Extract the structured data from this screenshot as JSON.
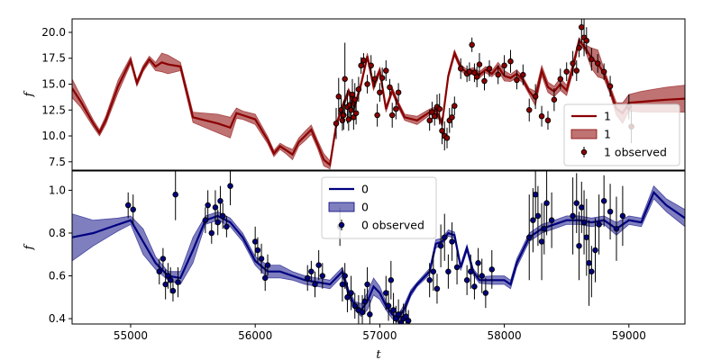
{
  "chart_data": [
    {
      "type": "line",
      "panel": "top",
      "ylabel": "f",
      "xlim": [
        54530,
        59450
      ],
      "ylim": [
        6.7,
        21.3
      ],
      "yticks": [
        "7.5",
        "10.0",
        "12.5",
        "15.0",
        "17.5",
        "20.0"
      ],
      "ytick_values": [
        7.5,
        10.0,
        12.5,
        15.0,
        17.5,
        20.0
      ],
      "color": "#8b0000",
      "legend_position": "lower-right",
      "legend": [
        {
          "kind": "line",
          "label": "1"
        },
        {
          "kind": "band",
          "label": "1"
        },
        {
          "kind": "points",
          "label": "1 observed"
        }
      ],
      "model": {
        "x": [
          54530,
          54600,
          54700,
          54750,
          54800,
          54900,
          55000,
          55050,
          55100,
          55150,
          55200,
          55250,
          55300,
          55400,
          55500,
          55700,
          55800,
          55850,
          55900,
          56000,
          56100,
          56150,
          56200,
          56250,
          56300,
          56350,
          56400,
          56450,
          56500,
          56550,
          56600,
          56650,
          56700,
          56750,
          56800,
          56850,
          56900,
          56950,
          57000,
          57050,
          57100,
          57150,
          57200,
          57300,
          57400,
          57450,
          57500,
          57550,
          57600,
          57650,
          57700,
          57750,
          57800,
          57850,
          57900,
          57950,
          58000,
          58050,
          58100,
          58150,
          58200,
          58250,
          58300,
          58350,
          58400,
          58450,
          58500,
          58550,
          58600,
          58650,
          58700,
          58750,
          58800,
          58850,
          58900,
          58950,
          59000,
          59100,
          59200,
          59300,
          59450
        ],
        "y": [
          14.6,
          13.3,
          11.2,
          10.3,
          11.5,
          14.8,
          17.3,
          15.1,
          16.5,
          17.4,
          16.7,
          17.1,
          16.9,
          16.7,
          11.8,
          11.2,
          10.8,
          12.2,
          12.0,
          11.6,
          9.6,
          8.3,
          9.0,
          8.6,
          8.2,
          9.4,
          10.0,
          10.6,
          9.2,
          7.7,
          7.2,
          11.0,
          12.8,
          14.3,
          12.9,
          15.0,
          17.7,
          14.8,
          16.3,
          12.6,
          14.4,
          13.0,
          11.8,
          11.5,
          12.3,
          12.5,
          11.2,
          15.8,
          18.0,
          16.6,
          16.1,
          16.3,
          15.9,
          16.4,
          16.0,
          16.7,
          15.8,
          15.6,
          16.0,
          15.4,
          14.3,
          13.6,
          16.3,
          14.7,
          14.3,
          15.0,
          14.4,
          16.6,
          19.2,
          18.5,
          17.5,
          17.0,
          16.0,
          14.4,
          12.6,
          12.2,
          13.2,
          13.3,
          13.4,
          13.5,
          13.6
        ],
        "sigma": [
          0.9,
          0.55,
          0.35,
          0.3,
          0.4,
          0.6,
          0.35,
          0.3,
          0.3,
          0.3,
          0.4,
          0.9,
          0.9,
          0.4,
          0.5,
          0.9,
          1.0,
          0.5,
          0.4,
          0.5,
          0.35,
          0.3,
          0.3,
          0.35,
          0.5,
          0.4,
          0.45,
          0.45,
          0.4,
          0.6,
          0.4,
          0.3,
          0.3,
          0.3,
          0.3,
          0.3,
          0.3,
          0.4,
          0.3,
          0.3,
          0.3,
          0.3,
          0.3,
          0.4,
          0.3,
          0.3,
          0.3,
          0.3,
          0.3,
          0.3,
          0.3,
          0.3,
          0.3,
          0.3,
          0.3,
          0.4,
          0.5,
          0.35,
          0.4,
          0.3,
          0.3,
          0.7,
          0.5,
          0.5,
          0.5,
          0.6,
          0.5,
          0.5,
          0.3,
          0.3,
          1.0,
          1.3,
          0.5,
          0.4,
          0.6,
          1.0,
          0.8,
          1.0,
          1.1,
          1.2,
          1.3
        ]
      },
      "observed": {
        "x": [
          56650,
          56670,
          56690,
          56700,
          56710,
          56720,
          56740,
          56750,
          56760,
          56770,
          56780,
          56790,
          56800,
          56810,
          56830,
          56850,
          56870,
          56900,
          56930,
          56960,
          56980,
          57000,
          57020,
          57050,
          57080,
          57100,
          57130,
          57150,
          57400,
          57420,
          57440,
          57460,
          57480,
          57500,
          57520,
          57540,
          57560,
          57580,
          57600,
          57650,
          57700,
          57720,
          57740,
          57760,
          57780,
          57800,
          57840,
          57880,
          57950,
          58000,
          58050,
          58100,
          58150,
          58200,
          58250,
          58300,
          58350,
          58400,
          58450,
          58500,
          58550,
          58580,
          58600,
          58620,
          58640,
          58660,
          58700,
          58750,
          58800,
          58850,
          59000,
          59020
        ],
        "y": [
          11.2,
          13.8,
          12.5,
          11.5,
          12.0,
          15.5,
          12.8,
          11.6,
          13.0,
          12.5,
          14.0,
          11.8,
          13.5,
          12.2,
          14.5,
          16.8,
          17.3,
          15.0,
          16.8,
          15.5,
          12.0,
          14.2,
          15.6,
          16.3,
          14.7,
          12.0,
          12.6,
          14.2,
          11.5,
          12.3,
          11.9,
          12.8,
          12.6,
          10.5,
          10.0,
          9.8,
          11.5,
          11.8,
          12.9,
          16.5,
          16.0,
          16.2,
          18.8,
          16.1,
          15.7,
          16.9,
          15.3,
          16.5,
          15.9,
          16.8,
          17.2,
          15.4,
          15.9,
          12.5,
          13.8,
          11.9,
          11.5,
          13.5,
          15.5,
          16.2,
          17.0,
          16.3,
          18.5,
          20.5,
          19.5,
          19.2,
          17.4,
          17.0,
          16.2,
          14.8,
          12.8,
          10.9
        ],
        "err": [
          1.5,
          1.8,
          1.2,
          1.0,
          1.4,
          3.5,
          1.6,
          1.1,
          1.3,
          1.0,
          1.5,
          1.2,
          1.6,
          1.1,
          1.2,
          0.8,
          0.7,
          0.9,
          1.0,
          0.8,
          1.1,
          0.9,
          1.0,
          1.0,
          0.8,
          1.2,
          1.0,
          0.9,
          1.0,
          1.0,
          0.9,
          1.2,
          1.5,
          1.3,
          1.4,
          1.0,
          1.2,
          1.0,
          0.9,
          1.0,
          0.8,
          0.9,
          0.7,
          0.9,
          1.0,
          1.1,
          0.9,
          0.8,
          0.9,
          1.0,
          1.1,
          0.9,
          1.0,
          1.1,
          1.2,
          1.0,
          0.9,
          1.1,
          1.0,
          0.9,
          1.2,
          1.0,
          0.9,
          1.5,
          1.8,
          1.3,
          1.1,
          0.9,
          0.8,
          1.0,
          1.2,
          1.6
        ]
      }
    },
    {
      "type": "line",
      "panel": "bottom",
      "xlabel": "t",
      "ylabel": "f",
      "xlim": [
        54530,
        59450
      ],
      "ylim": [
        0.375,
        1.09
      ],
      "yticks": [
        "0.4",
        "0.6",
        "0.8",
        "1.0"
      ],
      "ytick_values": [
        0.4,
        0.6,
        0.8,
        1.0
      ],
      "xticks": [
        "55000",
        "56000",
        "57000",
        "58000",
        "59000"
      ],
      "xtick_values": [
        55000,
        56000,
        57000,
        58000,
        59000
      ],
      "color": "#000080",
      "legend_position": "upper-center",
      "legend": [
        {
          "kind": "line",
          "label": "0"
        },
        {
          "kind": "band",
          "label": "0"
        },
        {
          "kind": "points",
          "label": "0 observed"
        }
      ],
      "model": {
        "x": [
          54530,
          54700,
          54900,
          55000,
          55100,
          55200,
          55300,
          55400,
          55500,
          55600,
          55700,
          55800,
          55900,
          56000,
          56100,
          56200,
          56300,
          56400,
          56500,
          56600,
          56700,
          56750,
          56800,
          56850,
          56900,
          56950,
          57000,
          57050,
          57100,
          57150,
          57200,
          57250,
          57300,
          57400,
          57450,
          57500,
          57550,
          57600,
          57650,
          57700,
          57750,
          57800,
          57900,
          58000,
          58050,
          58100,
          58200,
          58300,
          58400,
          58500,
          58600,
          58700,
          58800,
          58900,
          59000,
          59100,
          59200,
          59300,
          59450
        ],
        "y": [
          0.78,
          0.8,
          0.84,
          0.86,
          0.76,
          0.66,
          0.6,
          0.59,
          0.72,
          0.86,
          0.88,
          0.85,
          0.78,
          0.67,
          0.62,
          0.62,
          0.6,
          0.58,
          0.57,
          0.56,
          0.62,
          0.52,
          0.46,
          0.44,
          0.48,
          0.55,
          0.52,
          0.46,
          0.42,
          0.4,
          0.45,
          0.52,
          0.56,
          0.62,
          0.75,
          0.76,
          0.8,
          0.79,
          0.64,
          0.73,
          0.62,
          0.58,
          0.58,
          0.58,
          0.56,
          0.66,
          0.78,
          0.82,
          0.84,
          0.86,
          0.86,
          0.85,
          0.86,
          0.82,
          0.86,
          0.85,
          0.99,
          0.93,
          0.87
        ],
        "sigma": [
          0.11,
          0.06,
          0.03,
          0.02,
          0.06,
          0.03,
          0.02,
          0.03,
          0.06,
          0.02,
          0.02,
          0.02,
          0.02,
          0.02,
          0.03,
          0.03,
          0.02,
          0.02,
          0.02,
          0.02,
          0.02,
          0.02,
          0.02,
          0.03,
          0.04,
          0.04,
          0.03,
          0.02,
          0.02,
          0.02,
          0.02,
          0.015,
          0.01,
          0.015,
          0.02,
          0.015,
          0.015,
          0.015,
          0.015,
          0.015,
          0.015,
          0.015,
          0.02,
          0.02,
          0.02,
          0.02,
          0.02,
          0.02,
          0.02,
          0.02,
          0.02,
          0.02,
          0.02,
          0.03,
          0.02,
          0.02,
          0.03,
          0.03,
          0.04
        ]
      },
      "observed": {
        "x": [
          54980,
          55020,
          55230,
          55260,
          55280,
          55300,
          55320,
          55340,
          55360,
          55380,
          55600,
          55620,
          55650,
          55680,
          55700,
          55720,
          55740,
          55770,
          55800,
          56000,
          56020,
          56050,
          56080,
          56100,
          56420,
          56450,
          56480,
          56510,
          56540,
          56680,
          56700,
          56720,
          56740,
          56770,
          56800,
          56830,
          56860,
          56880,
          56900,
          56920,
          57050,
          57070,
          57090,
          57110,
          57130,
          57150,
          57170,
          57190,
          57210,
          57230,
          57400,
          57430,
          57460,
          57490,
          57520,
          57550,
          57580,
          57620,
          57700,
          57730,
          57760,
          57790,
          57820,
          57850,
          57900,
          58200,
          58230,
          58250,
          58270,
          58300,
          58320,
          58340,
          58380,
          58550,
          58580,
          58600,
          58620,
          58640,
          58660,
          58680,
          58700,
          58730,
          58760,
          58800,
          58850,
          58900,
          58950
        ],
        "y": [
          0.93,
          0.91,
          0.62,
          0.68,
          0.56,
          0.6,
          0.58,
          0.53,
          0.98,
          0.57,
          0.86,
          0.93,
          0.8,
          0.92,
          0.85,
          0.95,
          0.88,
          0.83,
          1.02,
          0.76,
          0.72,
          0.68,
          0.59,
          0.65,
          0.59,
          0.62,
          0.56,
          0.65,
          0.6,
          0.83,
          0.56,
          0.6,
          0.5,
          0.52,
          0.46,
          0.44,
          0.43,
          0.48,
          0.56,
          0.42,
          0.52,
          0.46,
          0.58,
          0.44,
          0.4,
          0.42,
          0.38,
          0.4,
          0.41,
          0.39,
          0.58,
          0.62,
          0.54,
          0.74,
          0.78,
          0.62,
          0.76,
          0.64,
          0.58,
          0.62,
          0.55,
          0.66,
          0.6,
          0.52,
          0.63,
          0.78,
          0.86,
          0.98,
          0.88,
          0.76,
          0.82,
          0.94,
          0.86,
          0.88,
          0.94,
          0.74,
          0.92,
          0.85,
          0.78,
          0.66,
          0.62,
          0.72,
          0.84,
          0.95,
          0.9,
          0.82,
          0.88
        ],
        "err": [
          0.06,
          0.07,
          0.06,
          0.05,
          0.07,
          0.06,
          0.06,
          0.05,
          0.12,
          0.07,
          0.06,
          0.07,
          0.05,
          0.08,
          0.06,
          0.07,
          0.06,
          0.05,
          0.09,
          0.07,
          0.06,
          0.07,
          0.06,
          0.05,
          0.06,
          0.05,
          0.06,
          0.07,
          0.06,
          0.09,
          0.08,
          0.06,
          0.07,
          0.08,
          0.06,
          0.07,
          0.08,
          0.06,
          0.08,
          0.07,
          0.08,
          0.07,
          0.09,
          0.08,
          0.06,
          0.07,
          0.06,
          0.07,
          0.06,
          0.05,
          0.08,
          0.09,
          0.07,
          0.1,
          0.11,
          0.08,
          0.09,
          0.08,
          0.07,
          0.08,
          0.06,
          0.07,
          0.08,
          0.07,
          0.09,
          0.2,
          0.15,
          0.12,
          0.14,
          0.18,
          0.12,
          0.15,
          0.13,
          0.18,
          0.14,
          0.16,
          0.12,
          0.15,
          0.18,
          0.2,
          0.12,
          0.15,
          0.14,
          0.12,
          0.13,
          0.15,
          0.14
        ]
      }
    }
  ]
}
